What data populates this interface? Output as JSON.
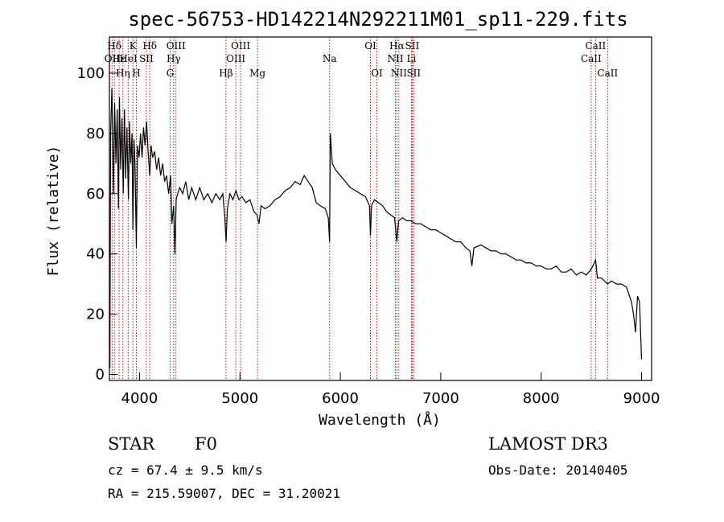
{
  "chart_data": {
    "type": "line",
    "title": "spec-56753-HD142214N292211M01_sp11-229.fits",
    "xlabel": "Wavelength (Å)",
    "ylabel": "Flux (relative)",
    "xlim": [
      3700,
      9100
    ],
    "ylim": [
      -2,
      112
    ],
    "xticks": [
      4000,
      5000,
      6000,
      7000,
      8000,
      9000
    ],
    "yticks": [
      0,
      20,
      40,
      60,
      80,
      100
    ],
    "spectrum": [
      [
        3705,
        2
      ],
      [
        3712,
        80
      ],
      [
        3725,
        95
      ],
      [
        3740,
        60
      ],
      [
        3752,
        90
      ],
      [
        3765,
        70
      ],
      [
        3778,
        88
      ],
      [
        3790,
        55
      ],
      [
        3800,
        92
      ],
      [
        3812,
        68
      ],
      [
        3825,
        85
      ],
      [
        3838,
        60
      ],
      [
        3850,
        88
      ],
      [
        3862,
        65
      ],
      [
        3875,
        82
      ],
      [
        3889,
        58
      ],
      [
        3900,
        84
      ],
      [
        3912,
        70
      ],
      [
        3925,
        80
      ],
      [
        3934,
        48
      ],
      [
        3945,
        78
      ],
      [
        3955,
        70
      ],
      [
        3968,
        42
      ],
      [
        3980,
        76
      ],
      [
        3995,
        72
      ],
      [
        4010,
        80
      ],
      [
        4025,
        72
      ],
      [
        4040,
        82
      ],
      [
        4055,
        76
      ],
      [
        4070,
        84
      ],
      [
        4085,
        74
      ],
      [
        4102,
        66
      ],
      [
        4115,
        76
      ],
      [
        4130,
        72
      ],
      [
        4150,
        74
      ],
      [
        4170,
        68
      ],
      [
        4190,
        72
      ],
      [
        4210,
        66
      ],
      [
        4230,
        70
      ],
      [
        4250,
        64
      ],
      [
        4270,
        66
      ],
      [
        4290,
        60
      ],
      [
        4310,
        66
      ],
      [
        4322,
        50
      ],
      [
        4340,
        56
      ],
      [
        4352,
        40
      ],
      [
        4365,
        58
      ],
      [
        4380,
        60
      ],
      [
        4400,
        62
      ],
      [
        4430,
        60
      ],
      [
        4460,
        64
      ],
      [
        4490,
        58
      ],
      [
        4520,
        62
      ],
      [
        4560,
        58
      ],
      [
        4600,
        62
      ],
      [
        4640,
        58
      ],
      [
        4680,
        60
      ],
      [
        4720,
        57
      ],
      [
        4760,
        60
      ],
      [
        4800,
        58
      ],
      [
        4830,
        60
      ],
      [
        4850,
        52
      ],
      [
        4862,
        44
      ],
      [
        4875,
        55
      ],
      [
        4900,
        60
      ],
      [
        4930,
        58
      ],
      [
        4960,
        61
      ],
      [
        4990,
        58
      ],
      [
        5020,
        59
      ],
      [
        5060,
        57
      ],
      [
        5100,
        58
      ],
      [
        5140,
        54
      ],
      [
        5170,
        53
      ],
      [
        5190,
        50
      ],
      [
        5210,
        56
      ],
      [
        5250,
        55
      ],
      [
        5300,
        56
      ],
      [
        5350,
        58
      ],
      [
        5400,
        59
      ],
      [
        5450,
        61
      ],
      [
        5500,
        62
      ],
      [
        5550,
        64
      ],
      [
        5600,
        63
      ],
      [
        5640,
        66
      ],
      [
        5680,
        64
      ],
      [
        5720,
        62
      ],
      [
        5760,
        57
      ],
      [
        5800,
        56
      ],
      [
        5850,
        55
      ],
      [
        5880,
        52
      ],
      [
        5893,
        44
      ],
      [
        5900,
        80
      ],
      [
        5920,
        70
      ],
      [
        5950,
        68
      ],
      [
        6000,
        66
      ],
      [
        6050,
        64
      ],
      [
        6100,
        62
      ],
      [
        6150,
        61
      ],
      [
        6200,
        60
      ],
      [
        6250,
        59
      ],
      [
        6290,
        56
      ],
      [
        6300,
        46
      ],
      [
        6310,
        56
      ],
      [
        6340,
        58
      ],
      [
        6380,
        57
      ],
      [
        6420,
        56
      ],
      [
        6460,
        54
      ],
      [
        6500,
        53
      ],
      [
        6540,
        52
      ],
      [
        6563,
        44
      ],
      [
        6580,
        51
      ],
      [
        6620,
        52
      ],
      [
        6660,
        51
      ],
      [
        6700,
        51
      ],
      [
        6750,
        50
      ],
      [
        6800,
        50
      ],
      [
        6850,
        49
      ],
      [
        6900,
        48
      ],
      [
        6950,
        48
      ],
      [
        7000,
        47
      ],
      [
        7050,
        46
      ],
      [
        7100,
        45
      ],
      [
        7150,
        44
      ],
      [
        7200,
        44
      ],
      [
        7250,
        42
      ],
      [
        7290,
        41
      ],
      [
        7310,
        36
      ],
      [
        7330,
        42
      ],
      [
        7400,
        43
      ],
      [
        7450,
        42
      ],
      [
        7500,
        41
      ],
      [
        7550,
        41
      ],
      [
        7600,
        40
      ],
      [
        7650,
        40
      ],
      [
        7700,
        39
      ],
      [
        7750,
        38
      ],
      [
        7800,
        38
      ],
      [
        7850,
        37
      ],
      [
        7900,
        37
      ],
      [
        7950,
        36
      ],
      [
        8000,
        36
      ],
      [
        8050,
        35
      ],
      [
        8100,
        35
      ],
      [
        8150,
        36
      ],
      [
        8200,
        34
      ],
      [
        8250,
        34
      ],
      [
        8300,
        35
      ],
      [
        8350,
        33
      ],
      [
        8400,
        34
      ],
      [
        8450,
        33
      ],
      [
        8500,
        35
      ],
      [
        8542,
        38
      ],
      [
        8560,
        32
      ],
      [
        8600,
        32
      ],
      [
        8662,
        30
      ],
      [
        8700,
        31
      ],
      [
        8750,
        30
      ],
      [
        8800,
        30
      ],
      [
        8850,
        29
      ],
      [
        8880,
        26
      ],
      [
        8900,
        24
      ],
      [
        8920,
        20
      ],
      [
        8940,
        14
      ],
      [
        8960,
        26
      ],
      [
        8980,
        24
      ],
      [
        9000,
        5
      ]
    ],
    "line_markers": [
      {
        "label": "OII",
        "wave": 3727,
        "row": 2
      },
      {
        "label": "Hδ",
        "wave": 3750,
        "row": 1
      },
      {
        "label": "Hε",
        "wave": 3797,
        "row": 2
      },
      {
        "label": "Hη",
        "wave": 3835,
        "row": 3
      },
      {
        "label": "HeI",
        "wave": 3889,
        "row": 2
      },
      {
        "label": "K",
        "wave": 3934,
        "row": 1
      },
      {
        "label": "H",
        "wave": 3968,
        "row": 3
      },
      {
        "label": "SII",
        "wave": 4068,
        "row": 2
      },
      {
        "label": "Hδ",
        "wave": 4102,
        "row": 1
      },
      {
        "label": "OIII",
        "wave": 4363,
        "row": 1
      },
      {
        "label": "Hγ",
        "wave": 4340,
        "row": 2
      },
      {
        "label": "G",
        "wave": 4305,
        "row": 3
      },
      {
        "label": "Hβ",
        "wave": 4861,
        "row": 3
      },
      {
        "label": "OIII",
        "wave": 4959,
        "row": 2
      },
      {
        "label": "OIII",
        "wave": 5007,
        "row": 1
      },
      {
        "label": "Mg",
        "wave": 5175,
        "row": 3
      },
      {
        "label": "Na",
        "wave": 5893,
        "row": 2
      },
      {
        "label": "OI",
        "wave": 6300,
        "row": 1
      },
      {
        "label": "OI",
        "wave": 6364,
        "row": 3
      },
      {
        "label": "Hα",
        "wave": 6563,
        "row": 1
      },
      {
        "label": "NII",
        "wave": 6548,
        "row": 2
      },
      {
        "label": "NII",
        "wave": 6583,
        "row": 3
      },
      {
        "label": "SII",
        "wave": 6716,
        "row": 1
      },
      {
        "label": "Li",
        "wave": 6708,
        "row": 2
      },
      {
        "label": "SII",
        "wave": 6731,
        "row": 3
      },
      {
        "label": "CaII",
        "wave": 8498,
        "row": 2
      },
      {
        "label": "CaII",
        "wave": 8542,
        "row": 1
      },
      {
        "label": "CaII",
        "wave": 8662,
        "row": 3
      }
    ]
  },
  "info": {
    "object_class": "STAR",
    "subclass": "F0",
    "redshift": "cz = 67.4 ± 9.5 km/s",
    "coords": "RA = 215.59007, DEC =  31.20021",
    "survey": "LAMOST DR3",
    "obs_date": "Obs-Date: 20140405"
  }
}
